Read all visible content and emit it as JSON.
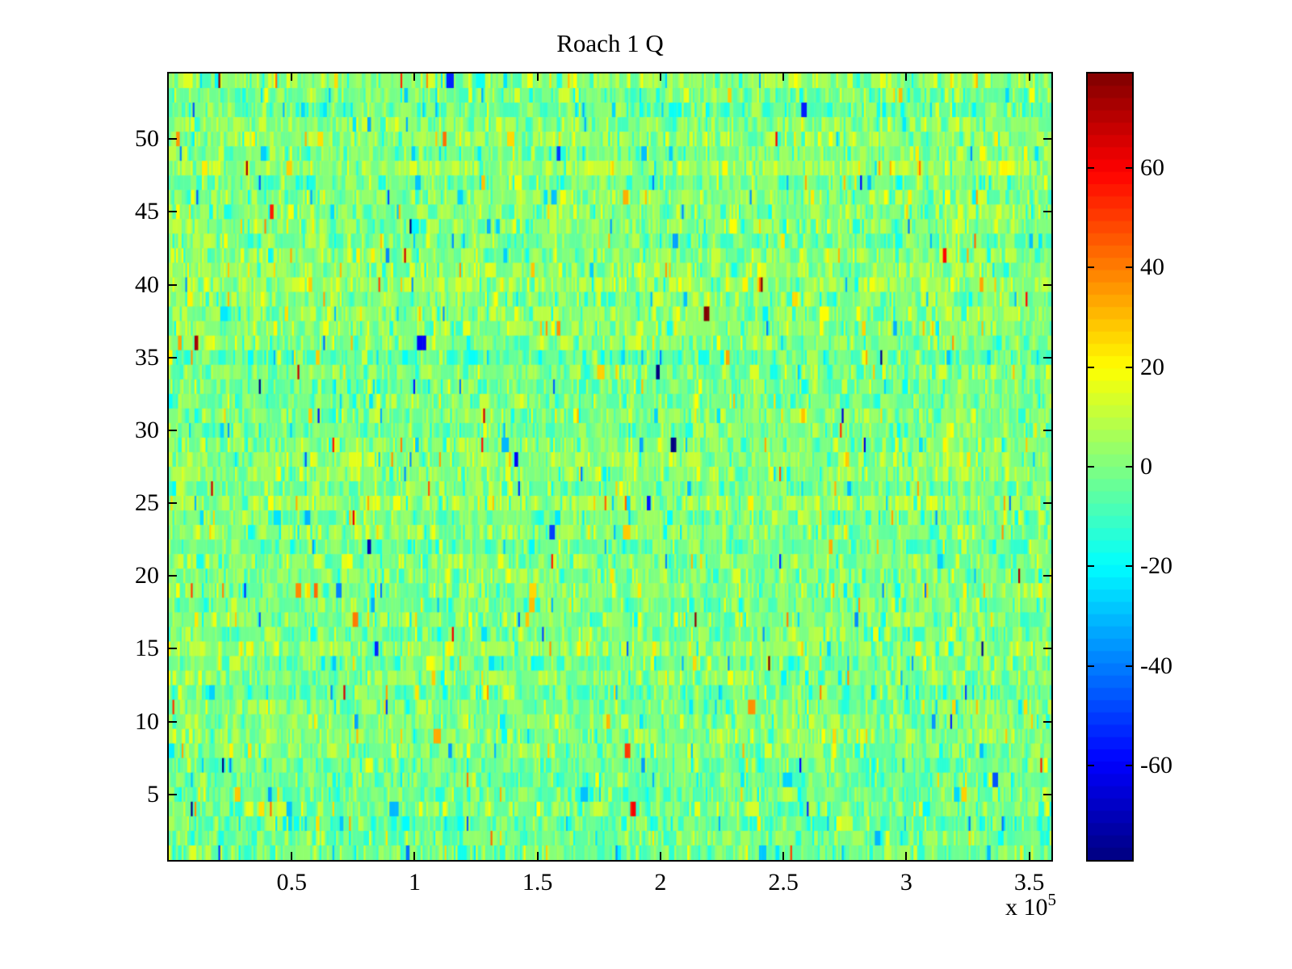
{
  "figure": {
    "background_color": "#ffffff",
    "axis_color": "#000000",
    "text_color": "#000000"
  },
  "chart_data": {
    "type": "heatmap",
    "title": "Roach 1 Q",
    "x_axis": {
      "tick_labels": [
        "0.5",
        "1",
        "1.5",
        "2",
        "2.5",
        "3",
        "3.5"
      ],
      "tick_values": [
        0.5,
        1,
        1.5,
        2,
        2.5,
        3,
        3.5
      ],
      "range": [
        0,
        3.59
      ],
      "scale_label": "x 10",
      "scale_exponent": "5",
      "unit_scale": 100000
    },
    "y_axis": {
      "tick_labels": [
        "5",
        "10",
        "15",
        "20",
        "25",
        "30",
        "35",
        "40",
        "45",
        "50"
      ],
      "tick_values": [
        5,
        10,
        15,
        20,
        25,
        30,
        35,
        40,
        45,
        50
      ],
      "range": [
        0.5,
        54.5
      ]
    },
    "colorbar": {
      "tick_labels": [
        "60",
        "40",
        "20",
        "0",
        "-20",
        "-40",
        "-60"
      ],
      "tick_values": [
        60,
        40,
        20,
        0,
        -20,
        -40,
        -60
      ],
      "clim": [
        -79,
        79
      ],
      "colormap": "jet",
      "levels": 64,
      "position": "right"
    },
    "grid": false,
    "legend": null,
    "data_summary": {
      "rows": 54,
      "cols": 480,
      "mean": 0,
      "std": 9,
      "value_extremes": [
        -79,
        79
      ],
      "pattern": "unstructured random speckle noise; mostly |v|<15 (green/cyan/yellow), sparse outliers to ±70 (orange/red/blue)",
      "seed": 123457
    }
  }
}
